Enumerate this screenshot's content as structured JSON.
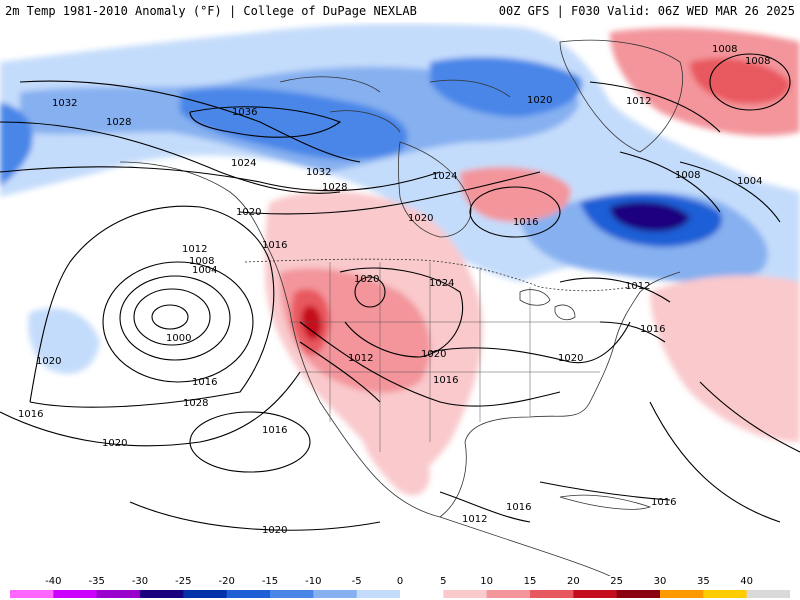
{
  "header": {
    "left_title": "2m Temp 1981-2010 Anomaly (°F) | College of DuPage NEXLAB",
    "right_title": "00Z GFS | F030 Valid: 06Z WED MAR 26 2025"
  },
  "colorbar": {
    "ticks": [
      "-40",
      "-35",
      "-30",
      "-25",
      "-20",
      "-15",
      "-10",
      "-5",
      "0",
      "5",
      "10",
      "15",
      "20",
      "25",
      "30",
      "35",
      "40"
    ],
    "colors": [
      "#ff66ff",
      "#cc00ff",
      "#9900cc",
      "#1a007f",
      "#0033aa",
      "#1f5fd6",
      "#4a86e8",
      "#86b0f0",
      "#c4dcfb",
      "#ffffff",
      "#f9c9cc",
      "#f3959b",
      "#e8585f",
      "#c60f1e",
      "#8b0010",
      "#ff9900",
      "#ffcc00",
      "#d9d9d9"
    ]
  },
  "pressure_labels": [
    {
      "id": "p1",
      "text": "1032"
    },
    {
      "id": "p2",
      "text": "1028"
    },
    {
      "id": "p3",
      "text": "1036"
    },
    {
      "id": "p4",
      "text": "1024"
    },
    {
      "id": "p5",
      "text": "1032"
    },
    {
      "id": "p6",
      "text": "1028"
    },
    {
      "id": "p7",
      "text": "1020"
    },
    {
      "id": "p8",
      "text": "1012"
    },
    {
      "id": "p9",
      "text": "1008"
    },
    {
      "id": "p10",
      "text": "1008"
    },
    {
      "id": "p11",
      "text": "1020"
    },
    {
      "id": "p12",
      "text": "1024"
    },
    {
      "id": "p13",
      "text": "1020"
    },
    {
      "id": "p14",
      "text": "1016"
    },
    {
      "id": "p15",
      "text": "1008"
    },
    {
      "id": "p16",
      "text": "1004"
    },
    {
      "id": "p17",
      "text": "1020"
    },
    {
      "id": "p18",
      "text": "1016"
    },
    {
      "id": "p19",
      "text": "1012"
    },
    {
      "id": "p20",
      "text": "1008"
    },
    {
      "id": "p21",
      "text": "1004"
    },
    {
      "id": "p22",
      "text": "1000"
    },
    {
      "id": "p23",
      "text": "1020"
    },
    {
      "id": "p24",
      "text": "1024"
    },
    {
      "id": "p25",
      "text": "1012"
    },
    {
      "id": "p26",
      "text": "1016"
    },
    {
      "id": "p27",
      "text": "1028"
    },
    {
      "id": "p28",
      "text": "1012"
    },
    {
      "id": "p29",
      "text": "1016"
    },
    {
      "id": "p30",
      "text": "1016"
    },
    {
      "id": "p31",
      "text": "1012"
    },
    {
      "id": "p32",
      "text": "1020"
    },
    {
      "id": "p33",
      "text": "1016"
    },
    {
      "id": "p34",
      "text": "1020"
    },
    {
      "id": "p35",
      "text": "1020"
    },
    {
      "id": "p36",
      "text": "1016"
    },
    {
      "id": "p37",
      "text": "1012"
    },
    {
      "id": "p38",
      "text": "1016"
    },
    {
      "id": "p39",
      "text": "1016"
    },
    {
      "id": "p40",
      "text": "1020"
    }
  ]
}
